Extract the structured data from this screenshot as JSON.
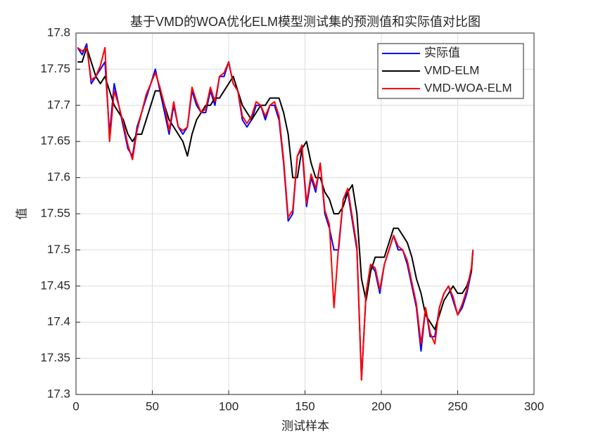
{
  "chart_data": {
    "type": "line",
    "title": "基于VMD的WOA优化ELM模型测试集的预测值和实际值对比图",
    "x_label": "测试样本",
    "y_label": "值",
    "x": [
      1,
      4,
      7,
      10,
      13,
      16,
      19,
      22,
      25,
      28,
      31,
      34,
      37,
      40,
      43,
      46,
      49,
      52,
      55,
      58,
      61,
      64,
      67,
      70,
      73,
      76,
      79,
      82,
      85,
      88,
      91,
      94,
      97,
      100,
      103,
      106,
      109,
      112,
      115,
      118,
      121,
      124,
      127,
      130,
      133,
      136,
      139,
      142,
      145,
      148,
      151,
      154,
      157,
      160,
      163,
      166,
      169,
      172,
      175,
      178,
      181,
      184,
      187,
      190,
      193,
      196,
      199,
      202,
      205,
      208,
      211,
      214,
      217,
      220,
      223,
      226,
      229,
      232,
      235,
      238,
      241,
      244,
      247,
      250,
      253,
      256,
      259,
      260
    ],
    "series": [
      {
        "name": "实际值",
        "color": "#0000ff",
        "values": [
          17.78,
          17.77,
          17.785,
          17.73,
          17.74,
          17.75,
          17.76,
          17.66,
          17.73,
          17.7,
          17.67,
          17.64,
          17.63,
          17.67,
          17.69,
          17.71,
          17.73,
          17.75,
          17.72,
          17.69,
          17.66,
          17.7,
          17.67,
          17.66,
          17.67,
          17.72,
          17.7,
          17.69,
          17.69,
          17.72,
          17.7,
          17.74,
          17.74,
          17.76,
          17.73,
          17.72,
          17.68,
          17.67,
          17.68,
          17.7,
          17.7,
          17.68,
          17.7,
          17.7,
          17.68,
          17.62,
          17.54,
          17.55,
          17.63,
          17.64,
          17.56,
          17.6,
          17.58,
          17.62,
          17.55,
          17.53,
          17.5,
          17.5,
          17.57,
          17.58,
          17.54,
          17.5,
          17.32,
          17.44,
          17.48,
          17.47,
          17.44,
          17.48,
          17.5,
          17.52,
          17.5,
          17.5,
          17.48,
          17.45,
          17.42,
          17.36,
          17.42,
          17.38,
          17.38,
          17.42,
          17.44,
          17.45,
          17.43,
          17.41,
          17.42,
          17.44,
          17.47,
          17.5
        ]
      },
      {
        "name": "VMD-ELM",
        "color": "#000000",
        "values": [
          17.76,
          17.76,
          17.78,
          17.76,
          17.74,
          17.73,
          17.74,
          17.72,
          17.7,
          17.69,
          17.68,
          17.66,
          17.65,
          17.66,
          17.66,
          17.68,
          17.7,
          17.72,
          17.72,
          17.7,
          17.68,
          17.67,
          17.66,
          17.65,
          17.63,
          17.66,
          17.68,
          17.69,
          17.7,
          17.7,
          17.71,
          17.71,
          17.72,
          17.73,
          17.74,
          17.72,
          17.7,
          17.69,
          17.68,
          17.69,
          17.7,
          17.7,
          17.71,
          17.71,
          17.71,
          17.69,
          17.66,
          17.6,
          17.6,
          17.64,
          17.65,
          17.62,
          17.6,
          17.6,
          17.58,
          17.57,
          17.55,
          17.55,
          17.56,
          17.58,
          17.59,
          17.55,
          17.46,
          17.43,
          17.47,
          17.49,
          17.49,
          17.49,
          17.51,
          17.53,
          17.53,
          17.52,
          17.51,
          17.49,
          17.46,
          17.44,
          17.41,
          17.4,
          17.39,
          17.41,
          17.43,
          17.44,
          17.45,
          17.44,
          17.44,
          17.45,
          17.47,
          17.5
        ]
      },
      {
        "name": "VMD-WOA-ELM",
        "color": "#ff0000",
        "values": [
          17.78,
          17.775,
          17.78,
          17.735,
          17.74,
          17.755,
          17.78,
          17.65,
          17.72,
          17.7,
          17.675,
          17.645,
          17.625,
          17.665,
          17.69,
          17.715,
          17.73,
          17.745,
          17.725,
          17.7,
          17.665,
          17.705,
          17.67,
          17.665,
          17.67,
          17.725,
          17.705,
          17.69,
          17.695,
          17.725,
          17.705,
          17.74,
          17.745,
          17.76,
          17.73,
          17.72,
          17.685,
          17.675,
          17.685,
          17.705,
          17.7,
          17.685,
          17.7,
          17.705,
          17.685,
          17.625,
          17.545,
          17.555,
          17.63,
          17.645,
          17.565,
          17.605,
          17.585,
          17.62,
          17.555,
          17.535,
          17.42,
          17.505,
          17.57,
          17.585,
          17.545,
          17.505,
          17.32,
          17.44,
          17.48,
          17.475,
          17.445,
          17.48,
          17.5,
          17.52,
          17.505,
          17.5,
          17.485,
          17.455,
          17.425,
          17.37,
          17.42,
          17.385,
          17.37,
          17.42,
          17.44,
          17.45,
          17.435,
          17.41,
          17.425,
          17.445,
          17.475,
          17.5
        ]
      }
    ],
    "xlim": [
      0,
      300
    ],
    "xticks": [
      0,
      50,
      100,
      150,
      200,
      250,
      300
    ],
    "ylim": [
      17.3,
      17.8
    ],
    "yticks": [
      17.3,
      17.35,
      17.4,
      17.45,
      17.5,
      17.55,
      17.6,
      17.65,
      17.7,
      17.75,
      17.8
    ],
    "grid": true,
    "legend": "northeast"
  }
}
